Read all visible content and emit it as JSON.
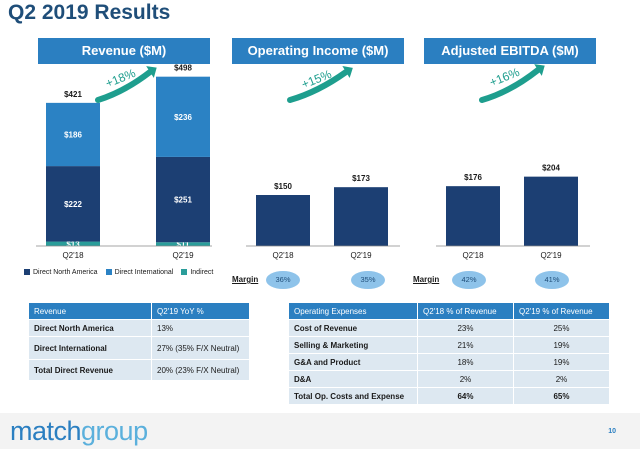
{
  "title": "Q2 2019 Results",
  "panels": {
    "revenue": {
      "title": "Revenue ($M)",
      "growth": "+18%",
      "categories": [
        "Q2'18",
        "Q2'19"
      ],
      "totals": [
        "$421",
        "$498"
      ],
      "segments": [
        {
          "name": "Direct North America",
          "values": [
            222,
            251
          ],
          "labels": [
            "$222",
            "$251"
          ],
          "color": "#1c3f73"
        },
        {
          "name": "Direct International",
          "values": [
            186,
            236
          ],
          "labels": [
            "$186",
            "$236"
          ],
          "color": "#2b82c4"
        },
        {
          "name": "Indirect",
          "values": [
            13,
            11
          ],
          "labels": [
            "$13",
            "$11"
          ],
          "color": "#2a9d9a"
        }
      ]
    },
    "operating_income": {
      "title": "Operating Income ($M)",
      "growth": "+15%",
      "categories": [
        "Q2'18",
        "Q2'19"
      ],
      "values": [
        150,
        173
      ],
      "labels": [
        "$150",
        "$173"
      ],
      "margin_label": "Margin",
      "margins": [
        "36%",
        "35%"
      ]
    },
    "ebitda": {
      "title": "Adjusted EBITDA ($M)",
      "growth": "+16%",
      "categories": [
        "Q2'18",
        "Q2'19"
      ],
      "values": [
        176,
        204
      ],
      "labels": [
        "$176",
        "$204"
      ],
      "margin_label": "Margin",
      "margins": [
        "42%",
        "41%"
      ]
    }
  },
  "chart_data": [
    {
      "type": "bar",
      "title": "Revenue ($M)",
      "categories": [
        "Q2'18",
        "Q2'19"
      ],
      "series": [
        {
          "name": "Direct North America",
          "values": [
            222,
            251
          ]
        },
        {
          "name": "Direct International",
          "values": [
            186,
            236
          ]
        },
        {
          "name": "Indirect",
          "values": [
            13,
            11
          ]
        }
      ],
      "totals": [
        421,
        498
      ],
      "stacked": true,
      "annotation": "+18%",
      "legend": "bottom"
    },
    {
      "type": "bar",
      "title": "Operating Income ($M)",
      "categories": [
        "Q2'18",
        "Q2'19"
      ],
      "series": [
        {
          "values": [
            150,
            173
          ]
        }
      ],
      "annotation": "+15%"
    },
    {
      "type": "bar",
      "title": "Adjusted EBITDA ($M)",
      "categories": [
        "Q2'18",
        "Q2'19"
      ],
      "series": [
        {
          "values": [
            176,
            204
          ]
        }
      ],
      "annotation": "+16%"
    }
  ],
  "revenue_table": {
    "headers": [
      "Revenue",
      "Q2'19 YoY %"
    ],
    "rows": [
      [
        "Direct North America",
        "13%"
      ],
      [
        "Direct International",
        "27%   (35% F/X Neutral)"
      ],
      [
        "Total Direct Revenue",
        "20%   (23% F/X Neutral)"
      ]
    ]
  },
  "opex_table": {
    "headers": [
      "Operating Expenses",
      "Q2'18 % of Revenue",
      "Q2'19 % of Revenue"
    ],
    "rows": [
      [
        "Cost of Revenue",
        "23%",
        "25%"
      ],
      [
        "Selling & Marketing",
        "21%",
        "19%"
      ],
      [
        "G&A and Product",
        "18%",
        "19%"
      ],
      [
        "D&A",
        "2%",
        "2%"
      ],
      [
        "Total Op. Costs and Expense",
        "64%",
        "65%"
      ]
    ]
  },
  "footer": {
    "logo_a": "match",
    "logo_b": "group",
    "page": "10"
  },
  "colors": {
    "header_blue": "#2b7fc1",
    "dark_navy": "#1c3f73",
    "arrow_teal": "#1e9e8e"
  }
}
